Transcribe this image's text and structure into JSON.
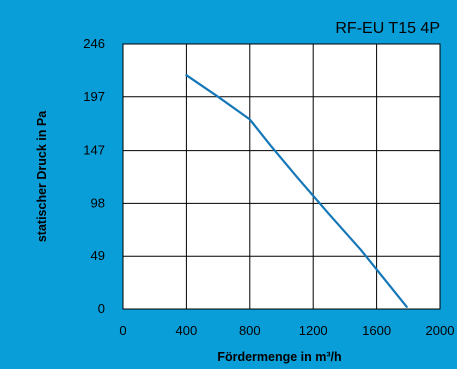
{
  "chart_data": {
    "type": "line",
    "title": "RF-EU T15 4P",
    "xlabel": "Fördermenge in m³/h",
    "ylabel": "statischer Druck in Pa",
    "xlim": [
      0,
      2000
    ],
    "ylim": [
      0,
      246
    ],
    "x_ticks": [
      0,
      400,
      800,
      1200,
      1600,
      2000
    ],
    "y_ticks": [
      0,
      49,
      98,
      147,
      197,
      246
    ],
    "grid": true,
    "series": [
      {
        "x": [
          400,
          600,
          800,
          930,
          1100,
          1300,
          1500,
          1790
        ],
        "y": [
          217,
          197,
          176,
          152,
          122,
          88,
          55,
          2
        ]
      }
    ],
    "colors": {
      "background": "#0a9ed8",
      "plot_area": "#ffffff",
      "line": "#1577b8",
      "grid": "#000000"
    }
  }
}
